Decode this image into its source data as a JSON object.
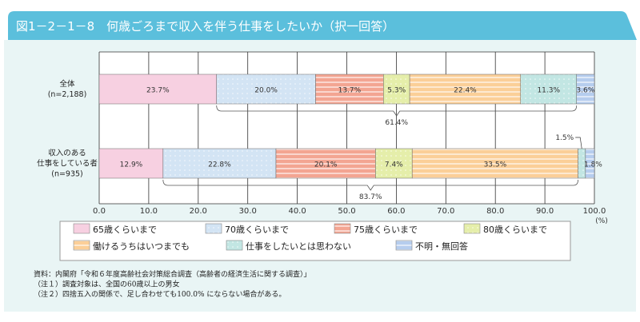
{
  "title": "図1－2－1－8　何歳ごろまで収入を伴う仕事をしたいか（択一回答）",
  "chart_data": {
    "type": "bar",
    "orientation": "horizontal",
    "stacked": true,
    "title": "図1－2－1－8　何歳ごろまで収入を伴う仕事をしたいか（択一回答）",
    "xlim": [
      0,
      100
    ],
    "xticks": [
      "0.0",
      "10.0",
      "20.0",
      "30.0",
      "40.0",
      "50.0",
      "60.0",
      "70.0",
      "80.0",
      "90.0",
      "100.0"
    ],
    "xunit": "(%)",
    "grid": true,
    "legend_placement": "bottom",
    "categories": [
      {
        "label1": "全体",
        "label2": "",
        "label3": "(n=2,188)"
      },
      {
        "label1": "収入のある",
        "label2": "仕事をしている者",
        "label3": "(n=935)"
      }
    ],
    "series": [
      {
        "name": "65歳くらいまで",
        "values": [
          23.7,
          12.9
        ],
        "labels": [
          "23.7%",
          "12.9%"
        ],
        "color": "#f7d0e1",
        "pattern": "solid"
      },
      {
        "name": "70歳くらいまで",
        "values": [
          20.0,
          22.8
        ],
        "labels": [
          "20.0%",
          "22.8%"
        ],
        "color": "#d3e4f4",
        "pattern": "dots"
      },
      {
        "name": "75歳くらいまで",
        "values": [
          13.7,
          20.1
        ],
        "labels": [
          "13.7%",
          "20.1%"
        ],
        "color": "#f3a592",
        "pattern": "stripes"
      },
      {
        "name": "80歳くらいまで",
        "values": [
          5.3,
          7.4
        ],
        "labels": [
          "5.3%",
          "7.4%"
        ],
        "color": "#e5eeaa",
        "pattern": "dots"
      },
      {
        "name": "働けるうちはいつまでも",
        "values": [
          22.4,
          33.5
        ],
        "labels": [
          "22.4%",
          "33.5%"
        ],
        "color": "#fbcf98",
        "pattern": "stripes"
      },
      {
        "name": "仕事をしたいとは思わない",
        "values": [
          11.3,
          1.5
        ],
        "labels": [
          "11.3%",
          "1.5%"
        ],
        "color": "#c2e6e3",
        "pattern": "dots"
      },
      {
        "name": "不明・無回答",
        "values": [
          3.6,
          1.8
        ],
        "labels": [
          "3.6%",
          "1.8%"
        ],
        "color": "#b6cdee",
        "pattern": "stripes"
      }
    ],
    "annotations": [
      {
        "row": 0,
        "from_series": 1,
        "to_series": 5,
        "label": "61.4%"
      },
      {
        "row": 1,
        "from_series": 1,
        "to_series": 4,
        "label": "83.7%"
      }
    ]
  },
  "notes": [
    "資料：内閣府「令和６年度高齢社会対策総合調査（高齢者の経済生活に関する調査）」",
    "（注１）調査対象は、全国の60歳以上の男女",
    "（注２）四捨五入の関係で、足し合わせても100.0% にならない場合がある。"
  ]
}
